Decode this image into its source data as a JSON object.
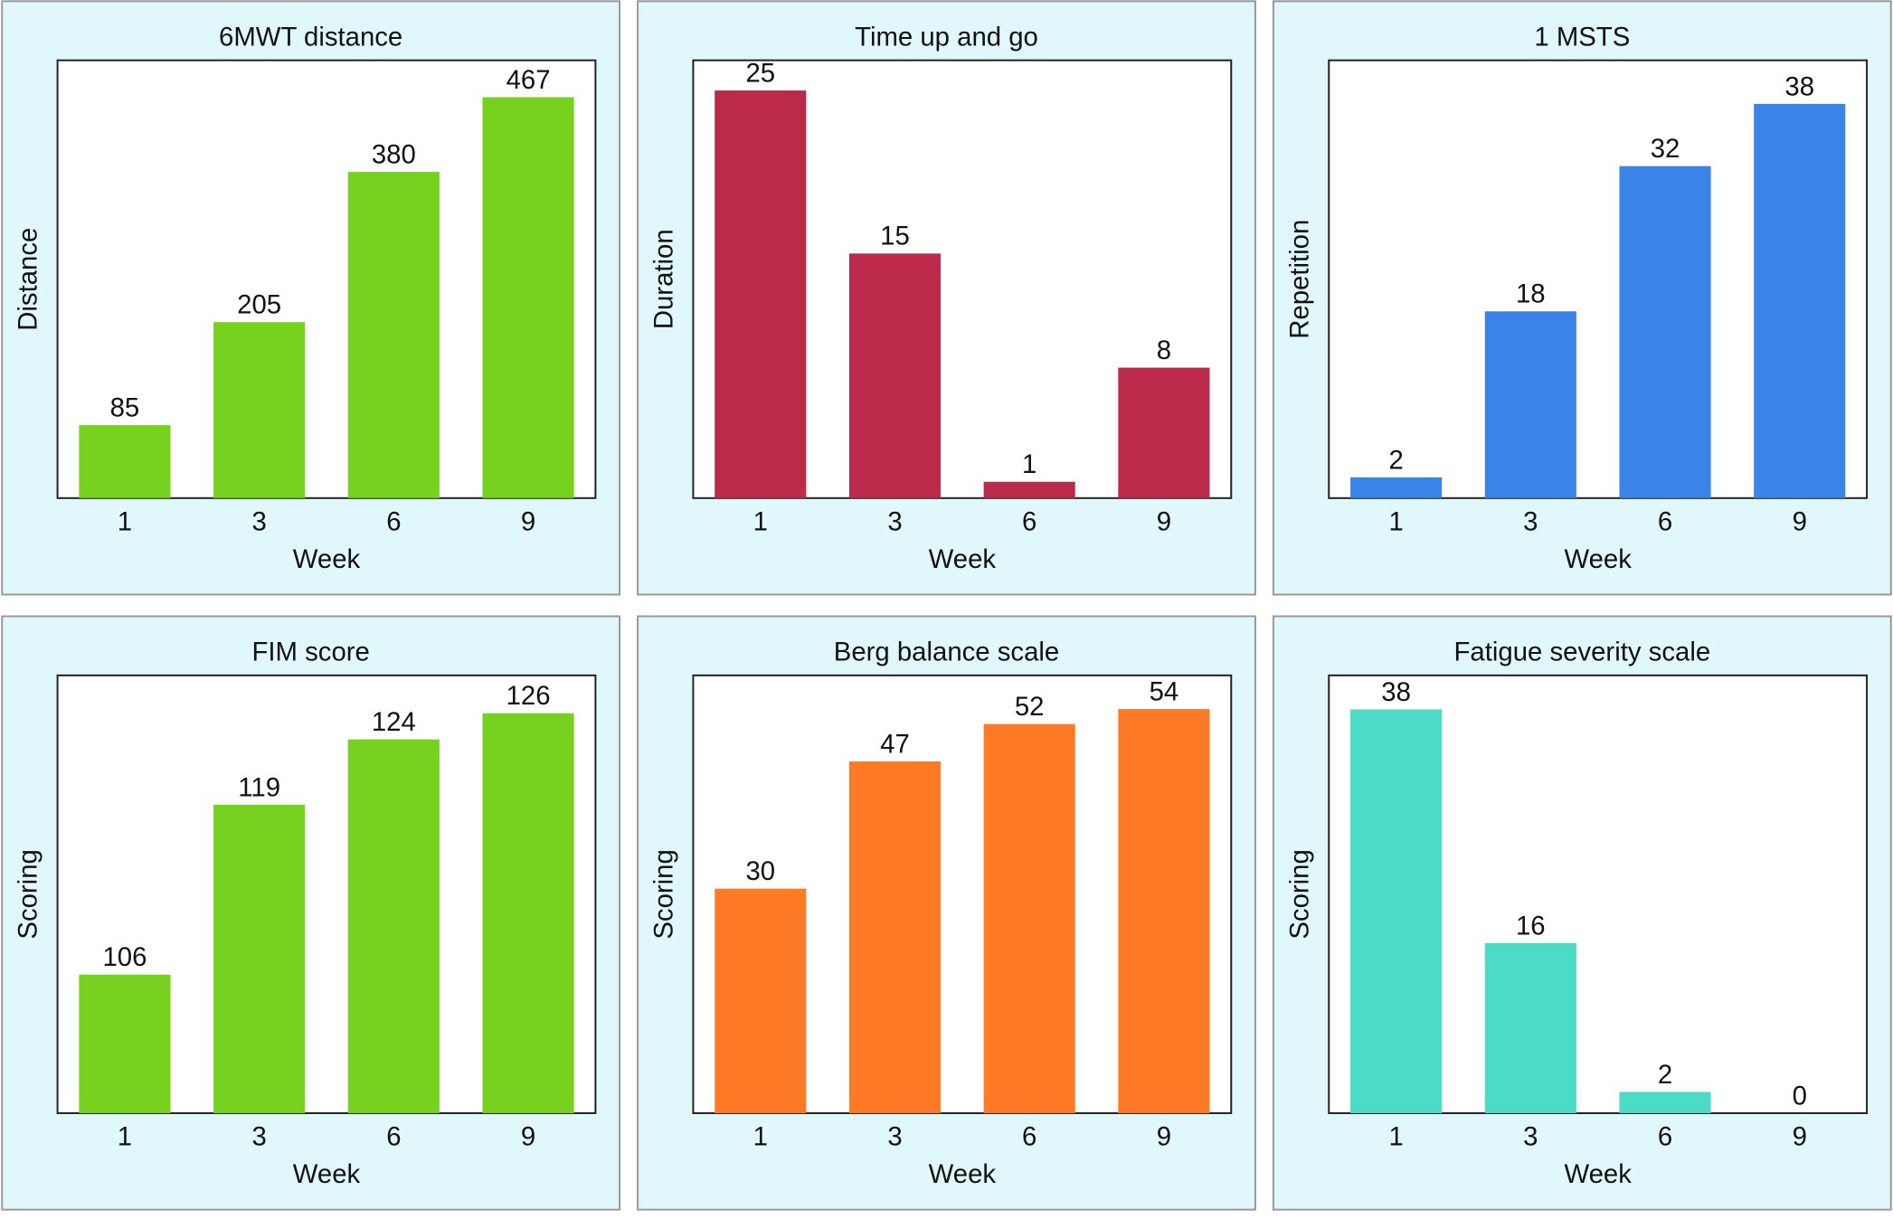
{
  "chart_data": [
    {
      "type": "bar",
      "title": "6MWT distance",
      "xlabel": "Week",
      "ylabel": "Distance",
      "categories": [
        "1",
        "3",
        "6",
        "9"
      ],
      "values": [
        85,
        205,
        380,
        467
      ],
      "color": "#76d21e",
      "ylim": [
        0,
        510
      ]
    },
    {
      "type": "bar",
      "title": "Time up and go",
      "xlabel": "Week",
      "ylabel": "Duration",
      "categories": [
        "1",
        "3",
        "6",
        "9"
      ],
      "values": [
        25,
        15,
        1,
        8
      ],
      "color": "#bc2a4b",
      "ylim": [
        0,
        26.85
      ]
    },
    {
      "type": "bar",
      "title": "1 MSTS",
      "xlabel": "Week",
      "ylabel": "Repetition",
      "categories": [
        "1",
        "3",
        "6",
        "9"
      ],
      "values": [
        2,
        18,
        32,
        38
      ],
      "color": "#3a84e8",
      "ylim": [
        0,
        42.2
      ]
    },
    {
      "type": "bar",
      "title": "FIM score",
      "xlabel": "Week",
      "ylabel": "Scoring",
      "categories": [
        "1",
        "3",
        "6",
        "9"
      ],
      "values": [
        106,
        119,
        124,
        126
      ],
      "color": "#76d21e",
      "ylim": [
        95.4,
        128.9
      ]
    },
    {
      "type": "bar",
      "title": "Berg balance scale",
      "xlabel": "Week",
      "ylabel": "Scoring",
      "categories": [
        "1",
        "3",
        "6",
        "9"
      ],
      "values": [
        30,
        47,
        52,
        54
      ],
      "color": "#fe7a26",
      "ylim": [
        0,
        58.5
      ]
    },
    {
      "type": "bar",
      "title": "Fatigue severity scale",
      "xlabel": "Week",
      "ylabel": "Scoring",
      "categories": [
        "1",
        "3",
        "6",
        "9"
      ],
      "values": [
        38,
        16,
        2,
        0
      ],
      "color": "#4cdbc6",
      "ylim": [
        0,
        41.2
      ]
    }
  ]
}
